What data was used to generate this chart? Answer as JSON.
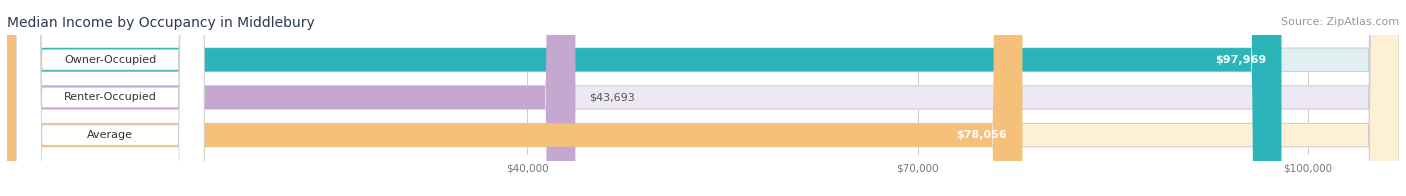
{
  "title": "Median Income by Occupancy in Middlebury",
  "source": "Source: ZipAtlas.com",
  "categories": [
    "Owner-Occupied",
    "Renter-Occupied",
    "Average"
  ],
  "values": [
    97969,
    43693,
    78056
  ],
  "bar_colors": [
    "#2bb5ba",
    "#c4a8d0",
    "#f5c07a"
  ],
  "bar_bg_colors": [
    "#e0f0f2",
    "#ede8f4",
    "#fdf0d5"
  ],
  "label_values": [
    "$97,969",
    "$43,693",
    "$78,056"
  ],
  "xmin": 0,
  "xmax": 107000,
  "xticks": [
    40000,
    70000,
    100000
  ],
  "xtick_labels": [
    "$40,000",
    "$70,000",
    "$100,000"
  ],
  "title_color": "#2b3a52",
  "source_color": "#999999",
  "title_fontsize": 10,
  "source_fontsize": 8,
  "label_fontsize": 8,
  "bar_label_fontsize": 8,
  "bar_height": 0.62,
  "figwidth": 14.06,
  "figheight": 1.96,
  "dpi": 100
}
